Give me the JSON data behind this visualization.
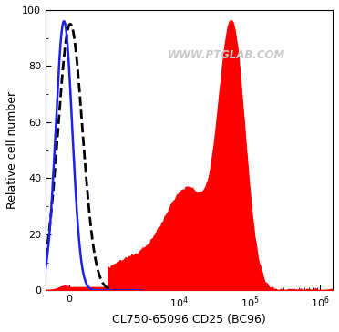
{
  "title": "WWW.PTGLAB.COM",
  "xlabel": "CL750-65096 CD25 (BC96)",
  "ylabel": "Relative cell number",
  "ylim": [
    0,
    100
  ],
  "yticks": [
    0,
    20,
    40,
    60,
    80,
    100
  ],
  "bg_color": "#ffffff",
  "watermark_color": "#c8c8c8",
  "symlog_linthresh": 1000,
  "symlog_linscale": 0.5,
  "xlim_left": -600,
  "xlim_right": 1500000,
  "isotype_dashed": {
    "peak_x": 30,
    "peak_y": 95,
    "sigma": 310,
    "color": "#000000",
    "linewidth": 2.0
  },
  "isotype_blue": {
    "peak_x": -130,
    "peak_y": 96,
    "sigma": 210,
    "color": "#2020ee",
    "linewidth": 1.8
  },
  "specific_red": {
    "color": "#ff0000",
    "linewidth": 1.0,
    "peak1_logx": 4.75,
    "peak1_y": 91,
    "peak1_sigma": 0.18,
    "peak2_logx": 4.15,
    "peak2_y": 30,
    "peak2_sigma": 0.3,
    "shoulder_logx": 3.5,
    "shoulder_y": 12,
    "shoulder_sigma": 0.55,
    "low_logx": 3.0,
    "low_y": 4,
    "low_sigma": 0.5,
    "noise_seed": 42
  }
}
